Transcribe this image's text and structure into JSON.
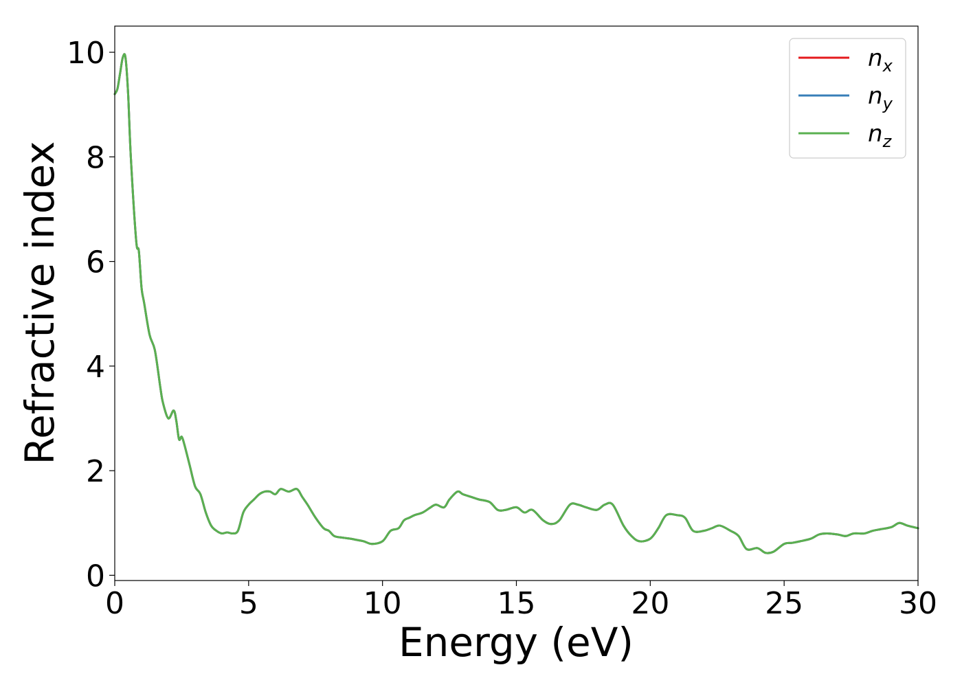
{
  "chart_data": {
    "type": "line",
    "xlabel": "Energy (eV)",
    "ylabel": "Refractive index",
    "xlim": [
      0,
      30
    ],
    "ylim": [
      -0.1,
      10.5
    ],
    "xticks": [
      0,
      5,
      10,
      15,
      20,
      25,
      30
    ],
    "yticks": [
      0,
      2,
      4,
      6,
      8,
      10
    ],
    "grid": false,
    "legend_position": "top-right",
    "x": [
      0,
      0.1,
      0.2,
      0.3,
      0.4,
      0.5,
      0.6,
      0.8,
      0.9,
      1.0,
      1.1,
      1.3,
      1.5,
      1.7,
      1.8,
      2.0,
      2.2,
      2.3,
      2.4,
      2.5,
      2.6,
      2.8,
      3.0,
      3.2,
      3.4,
      3.6,
      3.8,
      4.0,
      4.2,
      4.4,
      4.6,
      4.8,
      5.0,
      5.2,
      5.4,
      5.6,
      5.8,
      6.0,
      6.2,
      6.5,
      6.8,
      7.0,
      7.2,
      7.5,
      7.8,
      8.0,
      8.2,
      8.5,
      8.8,
      9.0,
      9.3,
      9.6,
      10.0,
      10.3,
      10.6,
      10.8,
      11.0,
      11.2,
      11.5,
      11.8,
      12.0,
      12.3,
      12.5,
      12.8,
      13.0,
      13.3,
      13.6,
      14.0,
      14.3,
      14.6,
      15.0,
      15.3,
      15.6,
      16.0,
      16.3,
      16.6,
      17.0,
      17.3,
      17.6,
      18.0,
      18.3,
      18.6,
      19.0,
      19.3,
      19.6,
      20.0,
      20.3,
      20.6,
      21.0,
      21.3,
      21.6,
      22.0,
      22.3,
      22.6,
      23.0,
      23.3,
      23.6,
      24.0,
      24.3,
      24.6,
      25.0,
      25.3,
      25.6,
      26.0,
      26.3,
      26.6,
      27.0,
      27.3,
      27.6,
      28.0,
      28.3,
      28.6,
      29.0,
      29.3,
      29.6,
      30.0
    ],
    "series": [
      {
        "name": "n_x",
        "color": "#e41a1c",
        "values": [
          9.2,
          9.3,
          9.6,
          9.9,
          9.9,
          9.2,
          8.0,
          6.4,
          6.2,
          5.5,
          5.2,
          4.6,
          4.3,
          3.6,
          3.3,
          3.0,
          3.15,
          2.95,
          2.6,
          2.65,
          2.5,
          2.1,
          1.7,
          1.55,
          1.2,
          0.95,
          0.85,
          0.8,
          0.82,
          0.8,
          0.85,
          1.2,
          1.35,
          1.45,
          1.55,
          1.6,
          1.6,
          1.55,
          1.65,
          1.6,
          1.65,
          1.5,
          1.35,
          1.1,
          0.9,
          0.85,
          0.75,
          0.72,
          0.7,
          0.68,
          0.65,
          0.6,
          0.65,
          0.85,
          0.9,
          1.05,
          1.1,
          1.15,
          1.2,
          1.3,
          1.35,
          1.3,
          1.45,
          1.6,
          1.55,
          1.5,
          1.45,
          1.4,
          1.25,
          1.25,
          1.3,
          1.2,
          1.25,
          1.05,
          0.98,
          1.05,
          1.35,
          1.35,
          1.3,
          1.25,
          1.35,
          1.35,
          0.95,
          0.75,
          0.65,
          0.7,
          0.9,
          1.15,
          1.15,
          1.1,
          0.85,
          0.85,
          0.9,
          0.95,
          0.85,
          0.75,
          0.5,
          0.52,
          0.43,
          0.45,
          0.6,
          0.62,
          0.65,
          0.7,
          0.78,
          0.8,
          0.78,
          0.75,
          0.8,
          0.8,
          0.85,
          0.88,
          0.92,
          1.0,
          0.95,
          0.9
        ]
      },
      {
        "name": "n_y",
        "color": "#377eb8",
        "values": [
          9.2,
          9.3,
          9.6,
          9.9,
          9.9,
          9.2,
          8.0,
          6.4,
          6.2,
          5.5,
          5.2,
          4.6,
          4.3,
          3.6,
          3.3,
          3.0,
          3.15,
          2.95,
          2.6,
          2.65,
          2.5,
          2.1,
          1.7,
          1.55,
          1.2,
          0.95,
          0.85,
          0.8,
          0.82,
          0.8,
          0.85,
          1.2,
          1.35,
          1.45,
          1.55,
          1.6,
          1.6,
          1.55,
          1.65,
          1.6,
          1.65,
          1.5,
          1.35,
          1.1,
          0.9,
          0.85,
          0.75,
          0.72,
          0.7,
          0.68,
          0.65,
          0.6,
          0.65,
          0.85,
          0.9,
          1.05,
          1.1,
          1.15,
          1.2,
          1.3,
          1.35,
          1.3,
          1.45,
          1.6,
          1.55,
          1.5,
          1.45,
          1.4,
          1.25,
          1.25,
          1.3,
          1.2,
          1.25,
          1.05,
          0.98,
          1.05,
          1.35,
          1.35,
          1.3,
          1.25,
          1.35,
          1.35,
          0.95,
          0.75,
          0.65,
          0.7,
          0.9,
          1.15,
          1.15,
          1.1,
          0.85,
          0.85,
          0.9,
          0.95,
          0.85,
          0.75,
          0.5,
          0.52,
          0.43,
          0.45,
          0.6,
          0.62,
          0.65,
          0.7,
          0.78,
          0.8,
          0.78,
          0.75,
          0.8,
          0.8,
          0.85,
          0.88,
          0.92,
          1.0,
          0.95,
          0.9
        ]
      },
      {
        "name": "n_z",
        "color": "#5ab050",
        "values": [
          9.2,
          9.3,
          9.6,
          9.9,
          9.9,
          9.2,
          8.0,
          6.4,
          6.2,
          5.5,
          5.2,
          4.6,
          4.3,
          3.6,
          3.3,
          3.0,
          3.15,
          2.95,
          2.6,
          2.65,
          2.5,
          2.1,
          1.7,
          1.55,
          1.2,
          0.95,
          0.85,
          0.8,
          0.82,
          0.8,
          0.85,
          1.2,
          1.35,
          1.45,
          1.55,
          1.6,
          1.6,
          1.55,
          1.65,
          1.6,
          1.65,
          1.5,
          1.35,
          1.1,
          0.9,
          0.85,
          0.75,
          0.72,
          0.7,
          0.68,
          0.65,
          0.6,
          0.65,
          0.85,
          0.9,
          1.05,
          1.1,
          1.15,
          1.2,
          1.3,
          1.35,
          1.3,
          1.45,
          1.6,
          1.55,
          1.5,
          1.45,
          1.4,
          1.25,
          1.25,
          1.3,
          1.2,
          1.25,
          1.05,
          0.98,
          1.05,
          1.35,
          1.35,
          1.3,
          1.25,
          1.35,
          1.35,
          0.95,
          0.75,
          0.65,
          0.7,
          0.9,
          1.15,
          1.15,
          1.1,
          0.85,
          0.85,
          0.9,
          0.95,
          0.85,
          0.75,
          0.5,
          0.52,
          0.43,
          0.45,
          0.6,
          0.62,
          0.65,
          0.7,
          0.78,
          0.8,
          0.78,
          0.75,
          0.8,
          0.8,
          0.85,
          0.88,
          0.92,
          1.0,
          0.95,
          0.9
        ]
      }
    ],
    "legend": [
      {
        "base": "n",
        "sub": "x"
      },
      {
        "base": "n",
        "sub": "y"
      },
      {
        "base": "n",
        "sub": "z"
      }
    ]
  }
}
